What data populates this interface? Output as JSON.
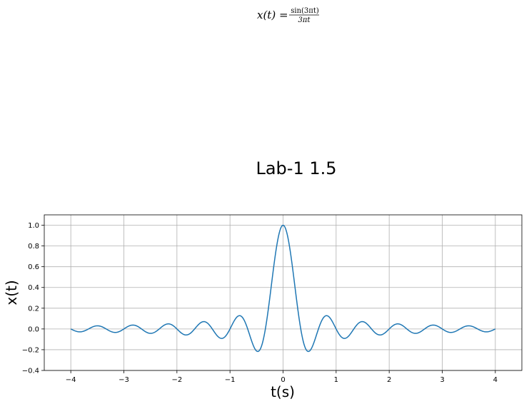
{
  "chart_data": {
    "type": "line",
    "formula": {
      "lhs": "x(t) = ",
      "numerator": "sin(3πt)",
      "denominator": "3πt"
    },
    "title": "Lab-1 1.5",
    "xlabel": "t(s)",
    "ylabel": "x(t)",
    "xlim": [
      -4.5,
      4.5
    ],
    "ylim": [
      -0.4,
      1.1
    ],
    "xticks": [
      -4,
      -3,
      -2,
      -1,
      0,
      1,
      2,
      3,
      4
    ],
    "xtick_labels": [
      "−4",
      "−3",
      "−2",
      "−1",
      "0",
      "1",
      "2",
      "3",
      "4"
    ],
    "yticks": [
      -0.4,
      -0.2,
      0.0,
      0.2,
      0.4,
      0.6,
      0.8,
      1.0
    ],
    "ytick_labels": [
      "−0.4",
      "−0.2",
      "0.0",
      "0.2",
      "0.4",
      "0.6",
      "0.8",
      "1.0"
    ],
    "grid": true,
    "series": [
      {
        "color": "#1f77b4",
        "function": "sin(3*pi*t)/(3*pi*t)",
        "t_range": [
          -4,
          4
        ],
        "samples": 801
      }
    ]
  }
}
